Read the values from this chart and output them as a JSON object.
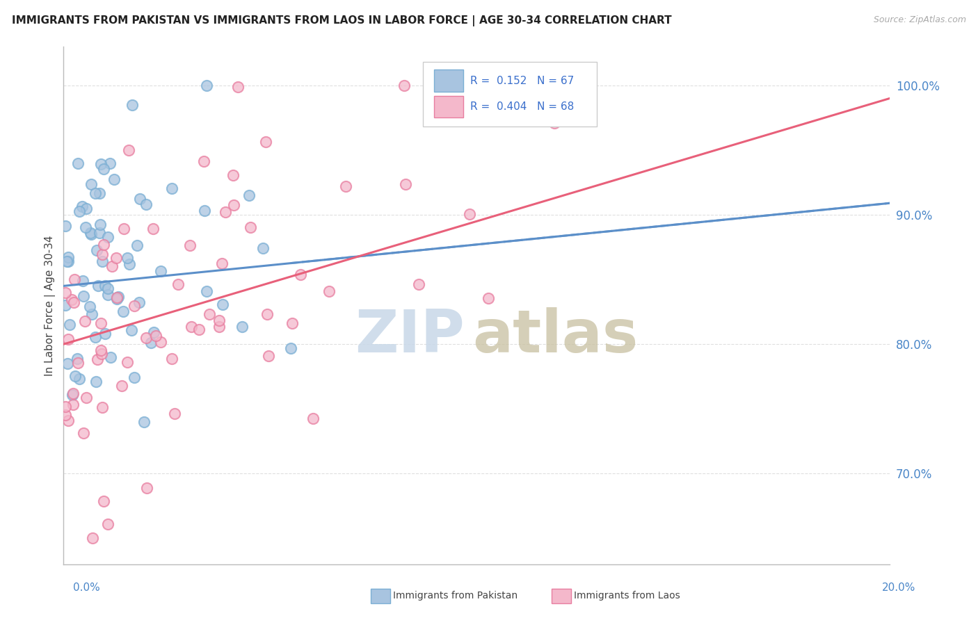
{
  "title": "IMMIGRANTS FROM PAKISTAN VS IMMIGRANTS FROM LAOS IN LABOR FORCE | AGE 30-34 CORRELATION CHART",
  "source": "Source: ZipAtlas.com",
  "ylabel": "In Labor Force | Age 30-34",
  "xmin": 0.0,
  "xmax": 20.0,
  "ymin": 63.0,
  "ymax": 103.0,
  "pakistan_R": 0.152,
  "pakistan_N": 67,
  "laos_R": 0.404,
  "laos_N": 68,
  "pakistan_color": "#a8c4e0",
  "pakistan_edge_color": "#7bafd4",
  "laos_color": "#f4b8cb",
  "laos_edge_color": "#e87ea0",
  "pakistan_line_color": "#5b8fc9",
  "laos_line_color": "#e8607a",
  "background_color": "#ffffff",
  "grid_color": "#e0e0e0",
  "ytick_color": "#4a86c8",
  "ytick_vals": [
    70.0,
    80.0,
    90.0,
    100.0
  ],
  "ytick_labels": [
    "70.0%",
    "80.0%",
    "90.0%",
    "100.0%"
  ],
  "legend_box_color_pakistan": "#a8c4e0",
  "legend_box_color_laos": "#f4b8cb",
  "watermark_zip_color": "#c8d8e8",
  "watermark_atlas_color": "#c8c0a0"
}
